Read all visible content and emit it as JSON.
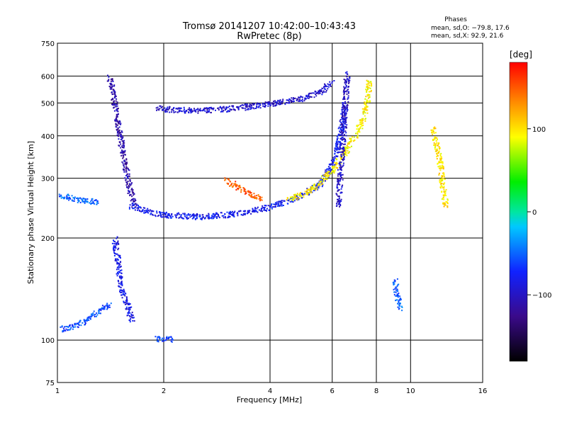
{
  "chart_data": {
    "type": "scatter",
    "title": "Tromsø 20141207 10:42:00–10:43:43",
    "subtitle": "RwPretec (8p)",
    "xlabel": "Frequency [MHz]",
    "ylabel": "Stationary phase Virtual Height [km]",
    "x_scale": "log",
    "y_scale": "log",
    "xlim": [
      1,
      16
    ],
    "ylim": [
      75,
      750
    ],
    "x_ticks": [
      1,
      2,
      4,
      6,
      8,
      10,
      16
    ],
    "x_tick_labels": [
      "1",
      "2",
      "4",
      "6",
      "8",
      "10",
      "16"
    ],
    "y_ticks": [
      75,
      100,
      200,
      300,
      400,
      500,
      600,
      750
    ],
    "y_tick_labels": [
      "75",
      "100",
      "200",
      "300",
      "400",
      "500",
      "600",
      "750"
    ],
    "grid": true,
    "colorbar": {
      "label": "[deg]",
      "min": -180,
      "max": 180,
      "ticks": [
        100,
        0,
        -100
      ],
      "tick_labels": [
        "100",
        "0",
        "−100"
      ],
      "colormap": "rainbow"
    },
    "stats": {
      "heading": "Phases",
      "line1": "mean, sd,O: −79.8, 17.6",
      "line2": "mean, sd,X:  92.9, 21.6"
    },
    "traces": [
      {
        "x": [
          1.0,
          1.1,
          1.2,
          1.3
        ],
        "y": [
          270,
          262,
          258,
          257
        ],
        "phase": -50
      },
      {
        "x": [
          1.4,
          1.45,
          1.5,
          1.55,
          1.6,
          1.65
        ],
        "y": [
          600,
          500,
          400,
          330,
          280,
          250
        ],
        "phase": -110
      },
      {
        "x": [
          1.45,
          1.48,
          1.5,
          1.52,
          1.55,
          1.58,
          1.6,
          1.63
        ],
        "y": [
          200,
          170,
          150,
          140,
          130,
          125,
          120,
          115
        ],
        "phase": -85
      },
      {
        "x": [
          1.0,
          1.1,
          1.2,
          1.3,
          1.4
        ],
        "y": [
          108,
          110,
          115,
          122,
          128
        ],
        "phase": -60
      },
      {
        "x": [
          1.6,
          1.8,
          2.0,
          2.5,
          3.0,
          3.5,
          4.0,
          4.5,
          5.0,
          5.5,
          6.0,
          6.3,
          6.5
        ],
        "y": [
          250,
          240,
          235,
          232,
          235,
          240,
          248,
          258,
          270,
          290,
          330,
          400,
          500
        ],
        "phase": -80
      },
      {
        "x": [
          1.9,
          2.2,
          2.6,
          3.0,
          3.5,
          4.0,
          4.5,
          5.0,
          5.5,
          6.0
        ],
        "y": [
          485,
          478,
          478,
          482,
          490,
          498,
          508,
          520,
          540,
          580
        ],
        "phase": -95
      },
      {
        "x": [
          4.5,
          5.0,
          5.5,
          6.0,
          6.5,
          7.0,
          7.3,
          7.5,
          7.6
        ],
        "y": [
          260,
          272,
          290,
          320,
          360,
          410,
          450,
          500,
          580
        ],
        "phase": 95
      },
      {
        "x": [
          3.0,
          3.2,
          3.5,
          3.8
        ],
        "y": [
          300,
          285,
          270,
          262
        ],
        "phase": 150
      },
      {
        "x": [
          6.2,
          6.3,
          6.4,
          6.5,
          6.6
        ],
        "y": [
          250,
          300,
          380,
          500,
          620
        ],
        "phase": -100
      },
      {
        "x": [
          1.9,
          2.0,
          2.1
        ],
        "y": [
          101,
          101,
          101
        ],
        "phase": -60
      },
      {
        "x": [
          9.0,
          9.1,
          9.2,
          9.3
        ],
        "y": [
          150,
          140,
          130,
          125
        ],
        "phase": -50
      },
      {
        "x": [
          11.5,
          12.0,
          12.5
        ],
        "y": [
          420,
          350,
          250
        ],
        "phase": 100
      }
    ]
  }
}
